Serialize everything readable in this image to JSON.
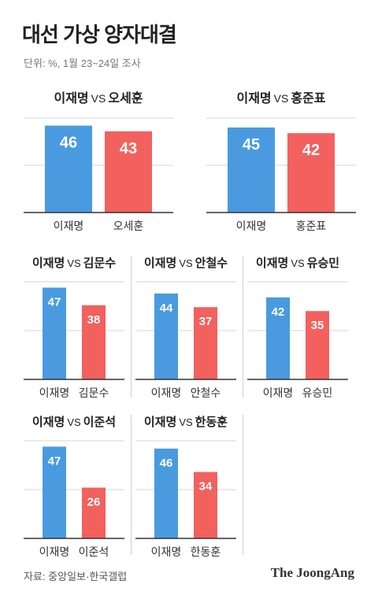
{
  "title": "대선 가상 양자대결",
  "subtitle": "단위: %, 1월 23~24일 조사",
  "source": "자료: 중앙일보·한국갤럽",
  "brand": "The JoongAng",
  "colors": {
    "lee": "#4a9ae0",
    "opponent": "#f2615e"
  },
  "chart_data": [
    {
      "type": "bar",
      "title_a": "이재명",
      "vs": "VS",
      "title_b": "오세훈",
      "categories": [
        "이재명",
        "오세훈"
      ],
      "values": [
        46,
        43
      ],
      "ylim": [
        0,
        50
      ]
    },
    {
      "type": "bar",
      "title_a": "이재명",
      "vs": "VS",
      "title_b": "홍준표",
      "categories": [
        "이재명",
        "홍준표"
      ],
      "values": [
        45,
        42
      ],
      "ylim": [
        0,
        50
      ]
    },
    {
      "type": "bar",
      "title_a": "이재명",
      "vs": "VS",
      "title_b": "김문수",
      "categories": [
        "이재명",
        "김문수"
      ],
      "values": [
        47,
        38
      ],
      "ylim": [
        0,
        50
      ]
    },
    {
      "type": "bar",
      "title_a": "이재명",
      "vs": "VS",
      "title_b": "안철수",
      "categories": [
        "이재명",
        "안철수"
      ],
      "values": [
        44,
        37
      ],
      "ylim": [
        0,
        50
      ]
    },
    {
      "type": "bar",
      "title_a": "이재명",
      "vs": "VS",
      "title_b": "유승민",
      "categories": [
        "이재명",
        "유승민"
      ],
      "values": [
        42,
        35
      ],
      "ylim": [
        0,
        50
      ]
    },
    {
      "type": "bar",
      "title_a": "이재명",
      "vs": "VS",
      "title_b": "이준석",
      "categories": [
        "이재명",
        "이준석"
      ],
      "values": [
        47,
        26
      ],
      "ylim": [
        0,
        50
      ]
    },
    {
      "type": "bar",
      "title_a": "이재명",
      "vs": "VS",
      "title_b": "한동훈",
      "categories": [
        "이재명",
        "한동훈"
      ],
      "values": [
        46,
        34
      ],
      "ylim": [
        0,
        50
      ]
    }
  ]
}
